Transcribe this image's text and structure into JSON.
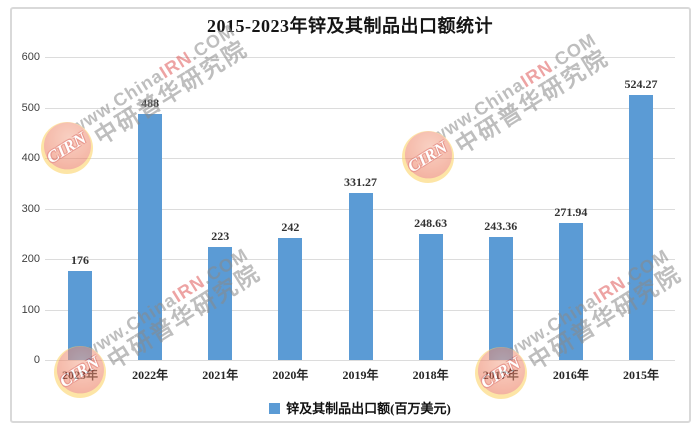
{
  "title": "2015-2023年锌及其制品出口额统计",
  "legend": {
    "label": "锌及其制品出口额(百万美元)",
    "swatch_color": "#5B9BD5"
  },
  "watermark": {
    "logo_text": "CIRN",
    "line1_gray": "www.China",
    "line1_red": "IRN",
    "line1_tail": ".COM",
    "line2": "中研普华研究院"
  },
  "chart_data": {
    "type": "bar",
    "title": "2015-2023年锌及其制品出口额统计",
    "categories": [
      "2023年",
      "2022年",
      "2021年",
      "2020年",
      "2019年",
      "2018年",
      "2017年",
      "2016年",
      "2015年"
    ],
    "values": [
      176,
      488,
      223,
      242,
      331.27,
      248.63,
      243.36,
      271.94,
      524.27
    ],
    "series_name": "锌及其制品出口额(百万美元)",
    "xlabel": "",
    "ylabel": "",
    "ylim": [
      0,
      600
    ],
    "ytick_step": 100,
    "yticks": [
      0,
      100,
      200,
      300,
      400,
      500,
      600
    ],
    "grid": true,
    "legend_position": "bottom",
    "bar_color": "#5B9BD5",
    "data_labels": [
      "176",
      "488",
      "223",
      "242",
      "331.27",
      "248.63",
      "243.36",
      "271.94",
      "524.27"
    ]
  }
}
